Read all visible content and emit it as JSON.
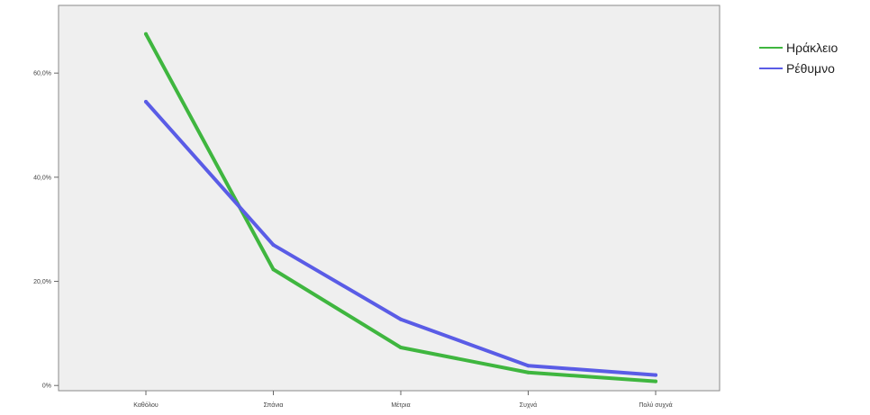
{
  "chart_data": {
    "type": "line",
    "title": "",
    "xlabel": "",
    "ylabel": "",
    "categories": [
      "Καθόλου",
      "Σπάνια",
      "Μέτρια",
      "Συχνά",
      "Πολύ συχνά"
    ],
    "y_ticks": [
      "0%",
      "20,0%",
      "40,0%",
      "60,0%"
    ],
    "y_tick_values": [
      0,
      20,
      40,
      60
    ],
    "ylim": [
      -1,
      73
    ],
    "grid": false,
    "legend_position": "top-right",
    "series": [
      {
        "name": "Ηράκλειο",
        "color": "#3fb63f",
        "values": [
          67.5,
          22.3,
          7.3,
          2.5,
          0.8
        ]
      },
      {
        "name": "Ρέθυμνο",
        "color": "#5a5ce6",
        "values": [
          54.5,
          27.0,
          12.7,
          3.8,
          2.0
        ]
      }
    ]
  }
}
